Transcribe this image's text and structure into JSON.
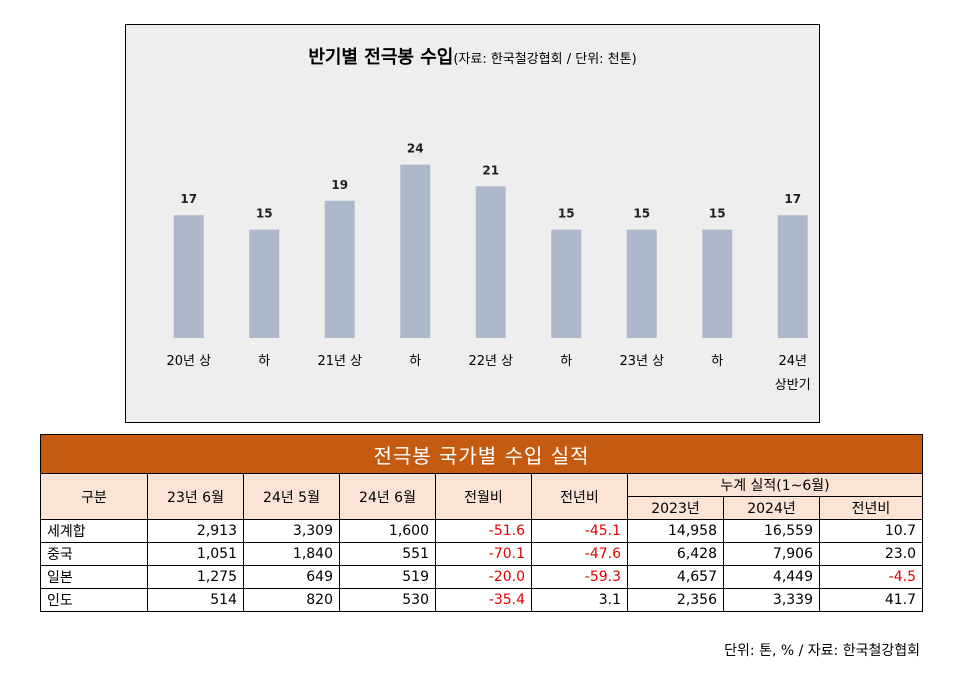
{
  "chart_data": {
    "type": "bar",
    "title": "반기별 전극봉 수입",
    "subtitle": "(자료: 한국철강협회 / 단위: 천톤)",
    "categories": [
      "20년 상",
      "하",
      "21년 상",
      "하",
      "22년 상",
      "하",
      "23년 상",
      "하",
      "24년\n상반기"
    ],
    "values": [
      17,
      15,
      19,
      24,
      21,
      15,
      15,
      15,
      17
    ],
    "data_labels": [
      "17",
      "15",
      "19",
      "24",
      "21",
      "15",
      "15",
      "15",
      "17"
    ],
    "ylim": [
      0,
      27
    ],
    "bar_color": "#adb9ca",
    "grid": false,
    "legend": "none"
  },
  "table": {
    "title": "전극봉 국가별 수입 실적",
    "headers": {
      "category": "구분",
      "cols": [
        "23년 6월",
        "24년 5월",
        "24년 6월",
        "전월비",
        "전년비"
      ],
      "cumulative": "누계 실적(1~6월)",
      "cumulative_cols": [
        "2023년",
        "2024년",
        "전년비"
      ]
    },
    "rows": [
      {
        "name": "세계합",
        "cells": [
          "2,913",
          "3,309",
          "1,600",
          "-51.6",
          "-45.1",
          "14,958",
          "16,559",
          "10.7"
        ]
      },
      {
        "name": "중국",
        "cells": [
          "1,051",
          "1,840",
          "551",
          "-70.1",
          "-47.6",
          "6,428",
          "7,906",
          "23.0"
        ]
      },
      {
        "name": "일본",
        "cells": [
          "1,275",
          "649",
          "519",
          "-20.0",
          "-59.3",
          "4,657",
          "4,449",
          "-4.5"
        ]
      },
      {
        "name": "인도",
        "cells": [
          "514",
          "820",
          "530",
          "-35.4",
          "3.1",
          "2,356",
          "3,339",
          "41.7"
        ]
      }
    ],
    "negative_color": "#e00000",
    "header_color": "#c55a11",
    "header_fill": "#fbe4d5"
  },
  "source": "단위: 톤, % / 자료: 한국철강협회"
}
